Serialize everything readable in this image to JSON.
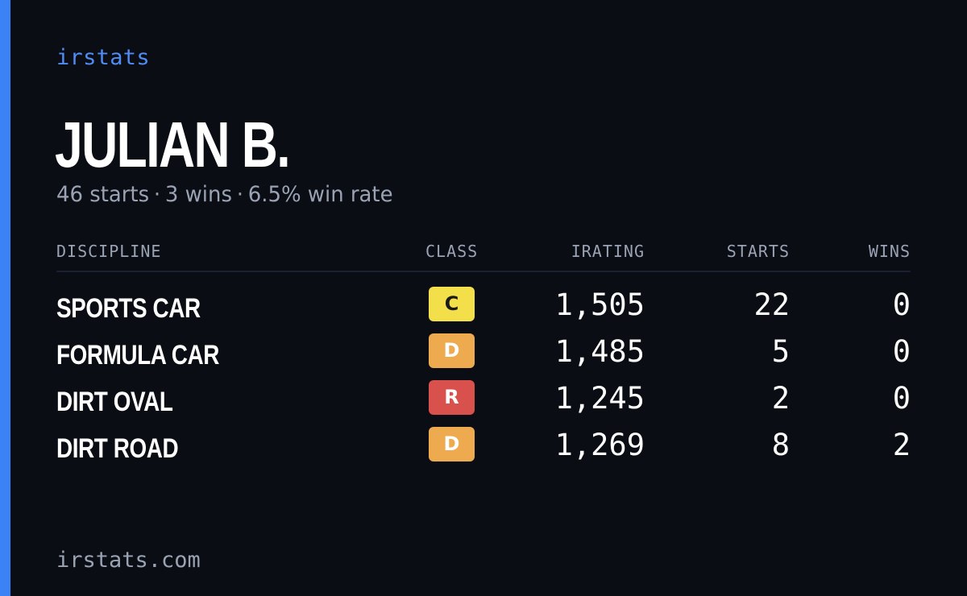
{
  "brand": "irstats",
  "driver_name": "JULIAN B.",
  "summary": {
    "starts": "46 starts",
    "wins": "3 wins",
    "win_rate": "6.5% win rate",
    "separator": "·"
  },
  "table": {
    "headers": {
      "discipline": "DISCIPLINE",
      "class": "CLASS",
      "irating": "IRATING",
      "starts": "STARTS",
      "wins": "WINS"
    },
    "rows": [
      {
        "discipline": "SPORTS CAR",
        "class": "C",
        "class_color": "#f2df4a",
        "class_text_color": "#1a1a1a",
        "irating": "1,505",
        "starts": "22",
        "wins": "0"
      },
      {
        "discipline": "FORMULA CAR",
        "class": "D",
        "class_color": "#eeaa4e",
        "class_text_color": "#ffffff",
        "irating": "1,485",
        "starts": "5",
        "wins": "0"
      },
      {
        "discipline": "DIRT OVAL",
        "class": "R",
        "class_color": "#d9514c",
        "class_text_color": "#ffffff",
        "irating": "1,245",
        "starts": "2",
        "wins": "0"
      },
      {
        "discipline": "DIRT ROAD",
        "class": "D",
        "class_color": "#eeaa4e",
        "class_text_color": "#ffffff",
        "irating": "1,269",
        "starts": "8",
        "wins": "2"
      }
    ]
  },
  "footer": "irstats.com",
  "colors": {
    "background": "#0a0d14",
    "accent": "#3b82f6",
    "muted_text": "#9aa3b4"
  }
}
